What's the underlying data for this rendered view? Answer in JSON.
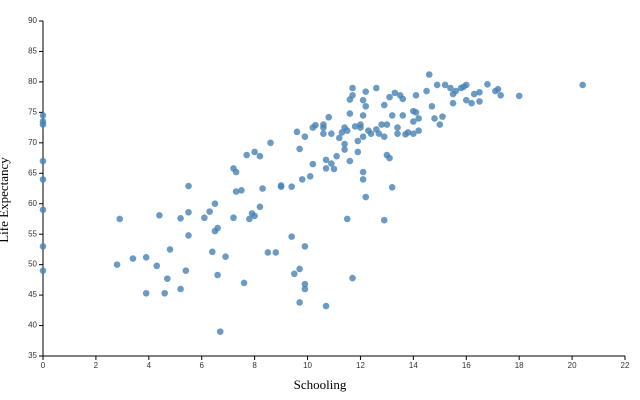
{
  "chart_data": {
    "type": "scatter",
    "x_label": "Schooling",
    "y_label": "Life Expectancy",
    "color": "#4682b4",
    "xlim": [
      0,
      22
    ],
    "ylim": [
      35,
      90
    ],
    "xticks": [
      0,
      2,
      4,
      6,
      8,
      10,
      12,
      14,
      16,
      18,
      20,
      22
    ],
    "yticks": [
      35,
      40,
      45,
      50,
      55,
      60,
      65,
      70,
      75,
      80,
      85,
      90
    ],
    "x": [
      0,
      0,
      0,
      0,
      0,
      0,
      0,
      0,
      2.8,
      2.9,
      3.4,
      3.9,
      3.9,
      4.3,
      4.4,
      4.6,
      4.7,
      4.8,
      5.2,
      5.2,
      5.4,
      5.5,
      5.5,
      5.5,
      6.1,
      6.3,
      6.4,
      6.5,
      6.5,
      6.6,
      6.6,
      6.7,
      6.9,
      7.2,
      7.2,
      7.3,
      7.3,
      7.5,
      7.6,
      7.7,
      7.8,
      7.9,
      8.0,
      8.0,
      8.2,
      8.2,
      8.3,
      8.5,
      8.6,
      8.8,
      9.0,
      9.0,
      9.4,
      9.4,
      9.5,
      9.6,
      9.7,
      9.7,
      9.7,
      9.8,
      9.9,
      9.9,
      9.9,
      9.9,
      10.1,
      10.2,
      10.2,
      10.3,
      10.6,
      10.6,
      10.6,
      10.7,
      10.7,
      10.7,
      10.8,
      10.9,
      10.9,
      11.0,
      11.1,
      11.2,
      11.3,
      11.4,
      11.4,
      11.4,
      11.5,
      11.5,
      11.6,
      11.6,
      11.6,
      11.7,
      11.7,
      11.7,
      11.8,
      11.9,
      11.9,
      12.0,
      12.0,
      12.1,
      12.1,
      12.1,
      12.1,
      12.1,
      12.2,
      12.2,
      12.2,
      12.3,
      12.4,
      12.6,
      12.6,
      12.7,
      12.8,
      12.9,
      12.9,
      12.9,
      13.0,
      13.0,
      13.1,
      13.1,
      13.2,
      13.2,
      13.3,
      13.4,
      13.4,
      13.5,
      13.6,
      13.6,
      13.7,
      13.8,
      14.0,
      14.0,
      14.0,
      14.1,
      14.1,
      14.2,
      14.2,
      14.5,
      14.6,
      14.7,
      14.8,
      14.9,
      15.0,
      15.1,
      15.2,
      15.4,
      15.5,
      15.5,
      15.6,
      15.8,
      15.9,
      16.0,
      16.0,
      16.2,
      16.3,
      16.5,
      16.5,
      16.8,
      17.1,
      17.2,
      17.3,
      18.0,
      20.4
    ],
    "values": [
      74.5,
      73.5,
      73,
      67,
      64,
      59,
      53,
      49,
      50,
      57.5,
      51,
      51.2,
      45.3,
      49.8,
      58.1,
      45.3,
      47.7,
      52.5,
      46,
      57.6,
      49,
      54.8,
      58.6,
      62.9,
      57.7,
      58.7,
      52.1,
      60,
      55.5,
      56,
      48.3,
      39,
      51.3,
      65.8,
      57.7,
      65.2,
      62,
      62.2,
      47,
      68,
      57.5,
      58.4,
      58,
      68.5,
      67.8,
      59.5,
      62.5,
      52,
      70,
      52,
      62.8,
      63,
      54.6,
      62.8,
      48.5,
      71.8,
      43.8,
      49.3,
      69,
      64,
      53,
      71,
      46.8,
      46,
      64.5,
      66.5,
      72.5,
      72.9,
      73,
      72.5,
      71.5,
      67.2,
      65.8,
      43.2,
      74.2,
      66.6,
      71.5,
      65.7,
      67.8,
      70.8,
      71.7,
      72.5,
      69.8,
      68.9,
      57.5,
      72,
      67,
      77.1,
      74.8,
      79,
      77.8,
      47.8,
      72.7,
      70.3,
      68.5,
      72.5,
      73,
      74.5,
      77,
      71,
      65.2,
      64,
      76,
      78.4,
      61.1,
      72,
      71.5,
      72.2,
      79,
      71.5,
      73,
      76.2,
      71,
      57.3,
      73,
      68,
      67.5,
      77.5,
      62.7,
      74.5,
      78.2,
      72.5,
      71.5,
      77.8,
      74.5,
      77.2,
      71.4,
      71.7,
      71.5,
      75.2,
      73.5,
      77.8,
      75,
      74,
      72,
      78.5,
      81.2,
      76,
      74,
      79.5,
      73,
      74.3,
      79.5,
      79,
      78,
      76.5,
      78.5,
      79,
      79.2,
      77,
      79.5,
      76.5,
      78,
      78.3,
      76.8,
      79.6,
      78.5,
      78.8,
      77.8,
      77.7,
      79.5
    ]
  }
}
